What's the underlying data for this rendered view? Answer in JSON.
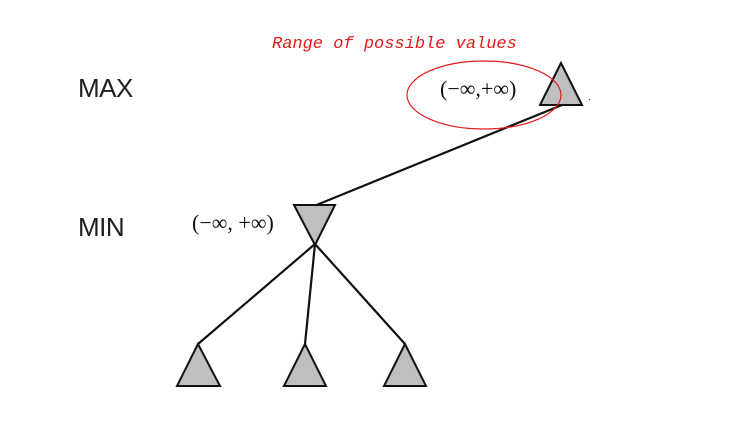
{
  "annotation": {
    "text": "Range of possible values",
    "color": "#e31b1b"
  },
  "levels": {
    "max_label": "MAX",
    "min_label": "MIN"
  },
  "nodes": {
    "root": {
      "type": "max",
      "range_label": "(−∞,+∞)"
    },
    "min_node": {
      "type": "min",
      "range_label": "(−∞, +∞)"
    },
    "leaves": [
      {
        "type": "max"
      },
      {
        "type": "max"
      },
      {
        "type": "max"
      }
    ]
  },
  "colors": {
    "node_fill": "#bfbfbf",
    "edge": "#111111",
    "highlight": "#e31b1b"
  }
}
